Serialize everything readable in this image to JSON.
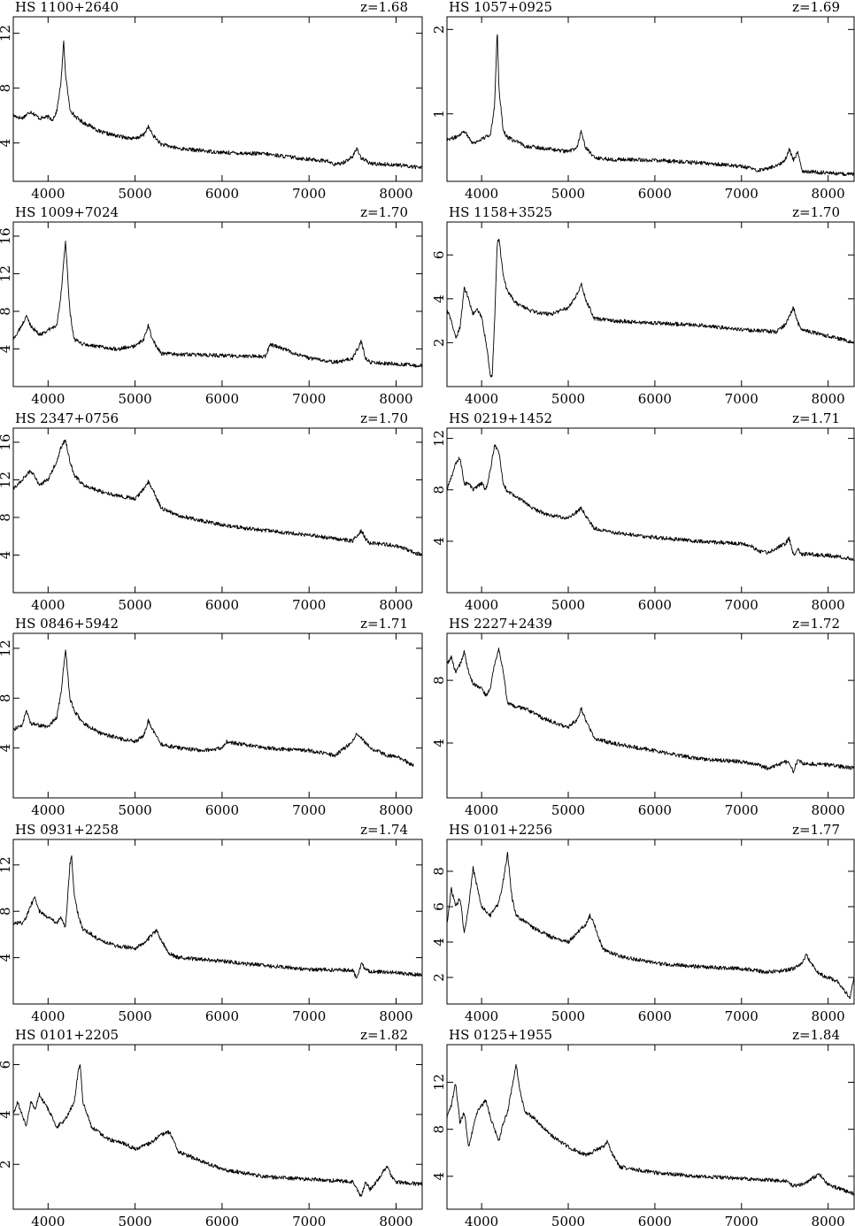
{
  "chart_data": [
    {
      "type": "line",
      "title": "HS 1100+2640",
      "z_label": "z=1.68",
      "xlim": [
        3600,
        8300
      ],
      "ylim": [
        1.2,
        13.2
      ],
      "xticks": [
        4000,
        5000,
        6000,
        7000,
        8000
      ],
      "yticks": [
        4,
        8,
        12
      ],
      "series": [
        {
          "x": [
            3600,
            3700,
            3800,
            3900,
            4000,
            4050,
            4100,
            4150,
            4180,
            4200,
            4250,
            4300,
            4400,
            4500,
            4600,
            4800,
            5000,
            5100,
            5150,
            5200,
            5300,
            5500,
            6000,
            6500,
            7000,
            7200,
            7300,
            7400,
            7500,
            7550,
            7600,
            7700,
            8000,
            8300
          ],
          "y": [
            6.0,
            5.8,
            6.3,
            5.8,
            5.9,
            5.7,
            6.3,
            8.5,
            11.5,
            9.0,
            6.5,
            6.0,
            5.5,
            5.2,
            4.8,
            4.5,
            4.3,
            4.6,
            5.2,
            4.6,
            3.9,
            3.6,
            3.3,
            3.2,
            2.8,
            2.7,
            2.4,
            2.6,
            3.0,
            3.6,
            2.9,
            2.5,
            2.4,
            2.2
          ]
        }
      ]
    },
    {
      "type": "line",
      "title": "HS 1057+0925",
      "z_label": "z=1.69",
      "xlim": [
        3600,
        8300
      ],
      "ylim": [
        0.2,
        2.15
      ],
      "xticks": [
        4000,
        5000,
        6000,
        7000,
        8000
      ],
      "yticks": [
        1,
        2
      ],
      "series": [
        {
          "x": [
            3600,
            3700,
            3800,
            3900,
            4000,
            4100,
            4150,
            4180,
            4200,
            4250,
            4300,
            4500,
            4800,
            5000,
            5100,
            5150,
            5200,
            5300,
            5500,
            6000,
            6500,
            7000,
            7200,
            7400,
            7500,
            7550,
            7600,
            7650,
            7700,
            8000,
            8300
          ],
          "y": [
            0.7,
            0.72,
            0.8,
            0.65,
            0.7,
            0.75,
            1.1,
            2.0,
            1.3,
            0.8,
            0.72,
            0.62,
            0.58,
            0.55,
            0.6,
            0.8,
            0.6,
            0.48,
            0.46,
            0.45,
            0.42,
            0.38,
            0.33,
            0.38,
            0.45,
            0.58,
            0.45,
            0.55,
            0.32,
            0.3,
            0.28
          ]
        }
      ]
    },
    {
      "type": "line",
      "title": "HS 1009+7024",
      "z_label": "z=1.70",
      "xlim": [
        3600,
        8300
      ],
      "ylim": [
        0,
        17.5
      ],
      "xticks": [
        4000,
        5000,
        6000,
        7000,
        8000
      ],
      "yticks": [
        4,
        8,
        12,
        16
      ],
      "series": [
        {
          "x": [
            3600,
            3700,
            3750,
            3800,
            3900,
            4000,
            4100,
            4150,
            4200,
            4250,
            4300,
            4400,
            4600,
            4800,
            5000,
            5100,
            5150,
            5200,
            5300,
            5600,
            6000,
            6500,
            6550,
            7000,
            7300,
            7500,
            7600,
            7650,
            7700,
            8000,
            8300
          ],
          "y": [
            5.0,
            6.5,
            7.5,
            6.5,
            5.5,
            6.0,
            6.5,
            10.0,
            15.5,
            8.0,
            5.0,
            4.5,
            4.2,
            4.0,
            4.3,
            5.0,
            6.5,
            5.0,
            3.5,
            3.4,
            3.3,
            3.2,
            4.5,
            3.0,
            2.6,
            3.0,
            4.8,
            3.0,
            2.6,
            2.4,
            2.2
          ]
        }
      ]
    },
    {
      "type": "line",
      "title": "HS 1158+3525",
      "z_label": "z=1.70",
      "xlim": [
        3600,
        8300
      ],
      "ylim": [
        0,
        7.5
      ],
      "xticks": [
        4000,
        5000,
        6000,
        7000,
        8000
      ],
      "yticks": [
        2,
        4,
        6
      ],
      "series": [
        {
          "x": [
            3600,
            3650,
            3700,
            3750,
            3800,
            3850,
            3900,
            3950,
            4000,
            4050,
            4100,
            4120,
            4150,
            4180,
            4200,
            4250,
            4300,
            4400,
            4600,
            4800,
            5000,
            5100,
            5150,
            5200,
            5300,
            5500,
            6000,
            6500,
            7000,
            7400,
            7500,
            7600,
            7650,
            7700,
            8000,
            8300
          ],
          "y": [
            3.5,
            3.0,
            2.2,
            2.7,
            4.5,
            4.0,
            3.3,
            3.5,
            3.2,
            2.0,
            0.6,
            0.3,
            3.0,
            6.5,
            6.8,
            5.0,
            4.3,
            3.8,
            3.4,
            3.3,
            3.6,
            4.2,
            4.7,
            4.0,
            3.1,
            3.0,
            2.9,
            2.8,
            2.6,
            2.5,
            2.8,
            3.6,
            2.9,
            2.6,
            2.3,
            2.0
          ]
        }
      ]
    },
    {
      "type": "line",
      "title": "HS 2347+0756",
      "z_label": "z=1.70",
      "xlim": [
        3600,
        8300
      ],
      "ylim": [
        0,
        17.5
      ],
      "xticks": [
        4000,
        5000,
        6000,
        7000,
        8000
      ],
      "yticks": [
        4,
        8,
        12,
        16
      ],
      "series": [
        {
          "x": [
            3600,
            3700,
            3800,
            3900,
            4000,
            4100,
            4150,
            4200,
            4250,
            4300,
            4400,
            4600,
            4800,
            5000,
            5100,
            5150,
            5200,
            5300,
            5500,
            6000,
            6500,
            7000,
            7500,
            7600,
            7650,
            7700,
            8000,
            8300
          ],
          "y": [
            11.0,
            12.0,
            13.0,
            11.5,
            12.0,
            14.0,
            15.5,
            16.3,
            14.0,
            12.5,
            11.5,
            10.8,
            10.3,
            10.0,
            11.0,
            11.8,
            11.0,
            9.0,
            8.2,
            7.2,
            6.6,
            6.1,
            5.5,
            6.6,
            5.7,
            5.3,
            5.0,
            4.0
          ]
        }
      ]
    },
    {
      "type": "line",
      "title": "HS 0219+1452",
      "z_label": "z=1.71",
      "xlim": [
        3600,
        8300
      ],
      "ylim": [
        0,
        12.8
      ],
      "xticks": [
        4000,
        5000,
        6000,
        7000,
        8000
      ],
      "yticks": [
        4,
        8,
        12
      ],
      "series": [
        {
          "x": [
            3600,
            3650,
            3700,
            3750,
            3800,
            3850,
            3900,
            4000,
            4050,
            4100,
            4150,
            4200,
            4250,
            4300,
            4400,
            4600,
            4800,
            5000,
            5100,
            5150,
            5200,
            5300,
            5500,
            6000,
            6500,
            7000,
            7100,
            7200,
            7300,
            7500,
            7550,
            7600,
            7650,
            7700,
            8000,
            8300
          ],
          "y": [
            8.0,
            9.0,
            10.0,
            10.5,
            8.5,
            8.5,
            8.0,
            8.5,
            8.0,
            9.5,
            11.5,
            11.0,
            8.5,
            7.8,
            7.5,
            6.5,
            6.0,
            5.8,
            6.3,
            6.6,
            6.0,
            5.0,
            4.7,
            4.3,
            4.0,
            3.8,
            3.7,
            3.2,
            3.1,
            3.8,
            4.2,
            2.9,
            3.4,
            3.0,
            2.9,
            2.6
          ]
        }
      ]
    },
    {
      "type": "line",
      "title": "HS 0846+5942",
      "z_label": "z=1.71",
      "xlim": [
        3600,
        8300
      ],
      "ylim": [
        0,
        13.2
      ],
      "xticks": [
        4000,
        5000,
        6000,
        7000,
        8000
      ],
      "yticks": [
        4,
        8,
        12
      ],
      "series": [
        {
          "x": [
            3600,
            3700,
            3750,
            3800,
            3900,
            4000,
            4100,
            4150,
            4200,
            4250,
            4300,
            4400,
            4600,
            4800,
            5000,
            5100,
            5150,
            5200,
            5300,
            5500,
            5800,
            6000,
            6050,
            6500,
            7000,
            7300,
            7500,
            7550,
            7600,
            7700,
            7900,
            8000,
            8100,
            8200
          ],
          "y": [
            5.5,
            5.8,
            7.0,
            6.0,
            5.8,
            5.7,
            6.5,
            8.5,
            12.0,
            8.0,
            7.0,
            6.0,
            5.2,
            4.8,
            4.5,
            5.0,
            6.2,
            5.5,
            4.3,
            4.0,
            3.8,
            4.0,
            4.5,
            4.0,
            3.8,
            3.4,
            4.5,
            5.2,
            4.8,
            4.0,
            3.4,
            3.3,
            3.0,
            2.6
          ]
        }
      ]
    },
    {
      "type": "line",
      "title": "HS 2227+2439",
      "z_label": "z=1.72",
      "xlim": [
        3600,
        8300
      ],
      "ylim": [
        0.5,
        11
      ],
      "xticks": [
        4000,
        5000,
        6000,
        7000,
        8000
      ],
      "yticks": [
        4,
        8
      ],
      "series": [
        {
          "x": [
            3600,
            3650,
            3700,
            3750,
            3800,
            3850,
            3900,
            4000,
            4050,
            4100,
            4150,
            4200,
            4250,
            4300,
            4400,
            4500,
            4700,
            5000,
            5100,
            5150,
            5200,
            5300,
            5500,
            6000,
            6500,
            7000,
            7200,
            7300,
            7500,
            7550,
            7600,
            7650,
            7700,
            8000,
            8300
          ],
          "y": [
            9.0,
            9.5,
            8.5,
            9.0,
            9.8,
            8.5,
            7.8,
            7.5,
            7.0,
            7.5,
            9.0,
            10.0,
            8.5,
            6.5,
            6.3,
            6.2,
            5.6,
            5.0,
            5.5,
            6.2,
            5.5,
            4.3,
            4.0,
            3.5,
            3.0,
            2.8,
            2.6,
            2.4,
            2.8,
            2.7,
            2.2,
            2.9,
            2.7,
            2.6,
            2.4
          ]
        }
      ]
    },
    {
      "type": "line",
      "title": "HS 0931+2258",
      "z_label": "z=1.74",
      "xlim": [
        3600,
        8300
      ],
      "ylim": [
        0,
        14.2
      ],
      "xticks": [
        4000,
        5000,
        6000,
        7000,
        8000
      ],
      "yticks": [
        4,
        8,
        12
      ],
      "series": [
        {
          "x": [
            3600,
            3700,
            3750,
            3800,
            3850,
            3900,
            4000,
            4100,
            4150,
            4200,
            4250,
            4270,
            4300,
            4350,
            4400,
            4600,
            4800,
            5000,
            5100,
            5200,
            5250,
            5300,
            5400,
            5500,
            6000,
            6500,
            7000,
            7500,
            7550,
            7600,
            7650,
            7700,
            8000,
            8300
          ],
          "y": [
            7.0,
            7.0,
            7.5,
            8.5,
            9.2,
            8.0,
            7.5,
            7.0,
            7.5,
            6.5,
            12.0,
            12.8,
            9.5,
            7.5,
            6.5,
            5.5,
            5.0,
            4.8,
            5.2,
            6.0,
            6.4,
            5.5,
            4.3,
            4.0,
            3.7,
            3.3,
            3.0,
            2.9,
            2.2,
            3.5,
            3.0,
            2.8,
            2.7,
            2.5
          ]
        }
      ]
    },
    {
      "type": "line",
      "title": "HS 0101+2256",
      "z_label": "z=1.77",
      "xlim": [
        3600,
        8300
      ],
      "ylim": [
        0.5,
        9.8
      ],
      "xticks": [
        4000,
        5000,
        6000,
        7000,
        8000
      ],
      "yticks": [
        2,
        4,
        6,
        8
      ],
      "series": [
        {
          "x": [
            3600,
            3650,
            3700,
            3750,
            3800,
            3850,
            3900,
            4000,
            4100,
            4200,
            4250,
            4300,
            4350,
            4400,
            4600,
            4800,
            5000,
            5100,
            5200,
            5250,
            5300,
            5400,
            5600,
            6000,
            6500,
            7000,
            7300,
            7500,
            7600,
            7700,
            7750,
            7800,
            7900,
            8000,
            8100,
            8200,
            8250,
            8300
          ],
          "y": [
            5.0,
            7.0,
            6.0,
            6.5,
            4.5,
            6.0,
            8.2,
            6.0,
            5.5,
            6.2,
            7.5,
            9.0,
            6.5,
            5.5,
            4.8,
            4.3,
            4.0,
            4.5,
            5.0,
            5.5,
            5.0,
            3.6,
            3.2,
            2.8,
            2.6,
            2.5,
            2.3,
            2.4,
            2.5,
            2.8,
            3.3,
            2.8,
            2.2,
            2.0,
            1.8,
            1.2,
            0.8,
            2.0
          ]
        }
      ]
    },
    {
      "type": "line",
      "title": "HS 0101+2205",
      "z_label": "z=1.82",
      "xlim": [
        3600,
        8300
      ],
      "ylim": [
        0.2,
        6.8
      ],
      "xticks": [
        4000,
        5000,
        6000,
        7000,
        8000
      ],
      "yticks": [
        2,
        4,
        6
      ],
      "series": [
        {
          "x": [
            3600,
            3650,
            3700,
            3750,
            3800,
            3850,
            3900,
            3950,
            4000,
            4100,
            4200,
            4300,
            4350,
            4370,
            4400,
            4500,
            4700,
            4900,
            5000,
            5200,
            5300,
            5400,
            5500,
            6000,
            6500,
            7000,
            7500,
            7600,
            7650,
            7700,
            7800,
            7850,
            7900,
            7950,
            8000,
            8300
          ],
          "y": [
            4.0,
            4.5,
            4.0,
            3.5,
            4.5,
            4.2,
            4.8,
            4.5,
            4.2,
            3.5,
            3.8,
            4.5,
            5.8,
            6.0,
            4.5,
            3.5,
            3.0,
            2.8,
            2.6,
            2.9,
            3.2,
            3.3,
            2.5,
            1.8,
            1.5,
            1.4,
            1.3,
            0.7,
            1.3,
            1.0,
            1.4,
            1.7,
            1.9,
            1.5,
            1.3,
            1.2
          ]
        }
      ]
    },
    {
      "type": "line",
      "title": "HS 0125+1955",
      "z_label": "z=1.84",
      "xlim": [
        3600,
        8300
      ],
      "ylim": [
        1.2,
        15.2
      ],
      "xticks": [
        4000,
        5000,
        6000,
        7000,
        8000
      ],
      "yticks": [
        4,
        8,
        12
      ],
      "series": [
        {
          "x": [
            3600,
            3650,
            3700,
            3750,
            3800,
            3850,
            3900,
            3950,
            4000,
            4050,
            4100,
            4200,
            4250,
            4300,
            4350,
            4400,
            4450,
            4500,
            4600,
            4800,
            5000,
            5200,
            5400,
            5450,
            5500,
            5600,
            6000,
            6500,
            7000,
            7500,
            7550,
            7600,
            7700,
            7900,
            8000,
            8300
          ],
          "y": [
            9.0,
            10.0,
            12.0,
            8.5,
            9.5,
            6.5,
            8.0,
            9.5,
            10.0,
            10.5,
            9.0,
            7.0,
            8.5,
            9.5,
            11.5,
            13.5,
            11.0,
            9.5,
            9.0,
            7.5,
            6.5,
            5.8,
            6.5,
            7.0,
            6.0,
            4.8,
            4.3,
            4.0,
            3.8,
            3.6,
            3.4,
            3.2,
            3.3,
            4.2,
            3.3,
            2.5
          ]
        }
      ]
    }
  ]
}
